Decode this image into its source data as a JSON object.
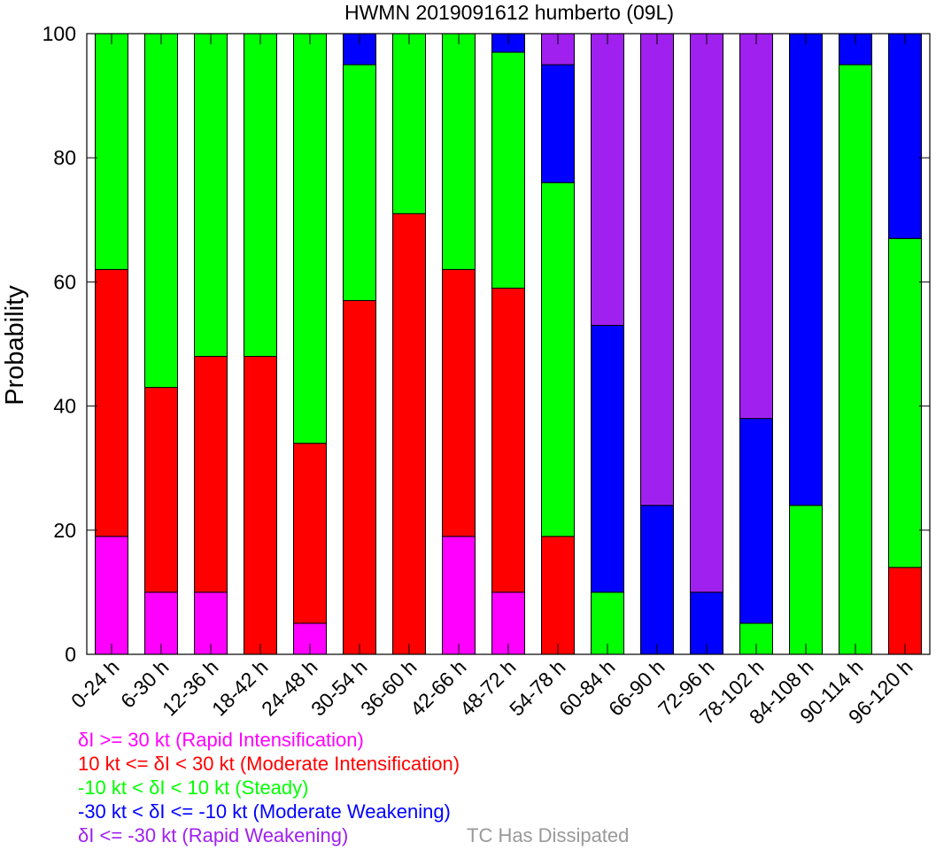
{
  "chart_data": {
    "type": "bar",
    "stacked": true,
    "title": "HWMN 2019091612 humberto (09L)",
    "xlabel": "",
    "ylabel": "Probability",
    "ylim": [
      0,
      100
    ],
    "yticks": [
      "0",
      "20",
      "40",
      "60",
      "80",
      "100"
    ],
    "grid": false,
    "legend_position": "bottom-left",
    "categories": [
      "0-24 h",
      "6-30 h",
      "12-36 h",
      "18-42 h",
      "24-48 h",
      "30-54 h",
      "36-60 h",
      "42-66 h",
      "48-72 h",
      "54-78 h",
      "60-84 h",
      "66-90 h",
      "72-96 h",
      "78-102 h",
      "84-108 h",
      "90-114 h",
      "96-120 h"
    ],
    "series": [
      {
        "name": "δI >= 30 kt (Rapid Intensification)",
        "color": "#ff00ff",
        "values": [
          19,
          10,
          10,
          0,
          5,
          0,
          0,
          19,
          10,
          0,
          0,
          0,
          0,
          0,
          0,
          0,
          0
        ]
      },
      {
        "name": "10 kt <= δI < 30 kt (Moderate Intensification)",
        "color": "#ff0000",
        "values": [
          43,
          33,
          38,
          48,
          29,
          57,
          71,
          43,
          49,
          19,
          0,
          0,
          0,
          0,
          0,
          0,
          14
        ]
      },
      {
        "name": "-10 kt < δI < 10 kt (Steady)",
        "color": "#00ff00",
        "values": [
          38,
          57,
          52,
          52,
          66,
          38,
          29,
          38,
          38,
          57,
          10,
          0,
          0,
          5,
          24,
          95,
          53
        ]
      },
      {
        "name": "-30 kt < δI <= -10 kt (Moderate Weakening)",
        "color": "#0000ff",
        "values": [
          0,
          0,
          0,
          0,
          0,
          5,
          0,
          0,
          3,
          19,
          43,
          24,
          10,
          33,
          76,
          5,
          33
        ]
      },
      {
        "name": "δI <= -30 kt (Rapid Weakening)",
        "color": "#a020f0",
        "values": [
          0,
          0,
          0,
          0,
          0,
          0,
          0,
          0,
          0,
          5,
          47,
          76,
          90,
          62,
          0,
          0,
          0
        ]
      }
    ],
    "extra_legend": {
      "name": "TC Has Dissipated",
      "color": "#999999"
    }
  }
}
